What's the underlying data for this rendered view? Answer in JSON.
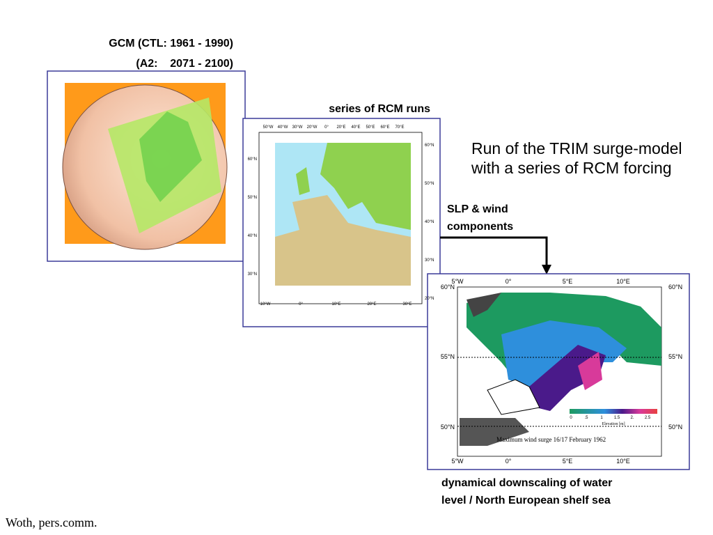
{
  "gcm": {
    "line1": "GCM (CTL: 1961 - 1990)",
    "line2": "(A2:    2071 - 2100)"
  },
  "rcm": {
    "label": "series of RCM runs",
    "top_labels": [
      "50°W",
      "40°W",
      "30°W",
      "20°W",
      "0°",
      "20°E",
      "40°E",
      "50°E",
      "60°E",
      "70°E"
    ],
    "left_labels": [
      "60°N",
      "50°N",
      "40°N",
      "30°N"
    ],
    "right_labels": [
      "60°N",
      "50°N",
      "40°N",
      "30°N",
      "20°N"
    ],
    "bottom_labels": [
      "10°W",
      "0°",
      "10°E",
      "20°E",
      "30°E"
    ]
  },
  "title": {
    "line1": "Run of the TRIM surge-model",
    "line2": "with a series of RCM forcing"
  },
  "forcing": {
    "line1": "SLP & wind",
    "line2": "components"
  },
  "surge": {
    "lon_labels": [
      "5°W",
      "0°",
      "5°E",
      "10°E"
    ],
    "lat_labels": [
      "60°N",
      "55°N",
      "50°N"
    ],
    "legend_ticks": [
      "0",
      ".5",
      "1",
      "1.5",
      "2.",
      "2.5"
    ],
    "legend_title": "Elevation [m]",
    "caption": "Maximum wind surge 16/17 February 1962"
  },
  "caption": {
    "line1": "dynamical downscaling of water",
    "line2": "level / North European shelf sea"
  },
  "credit": "Woth, pers.comm."
}
